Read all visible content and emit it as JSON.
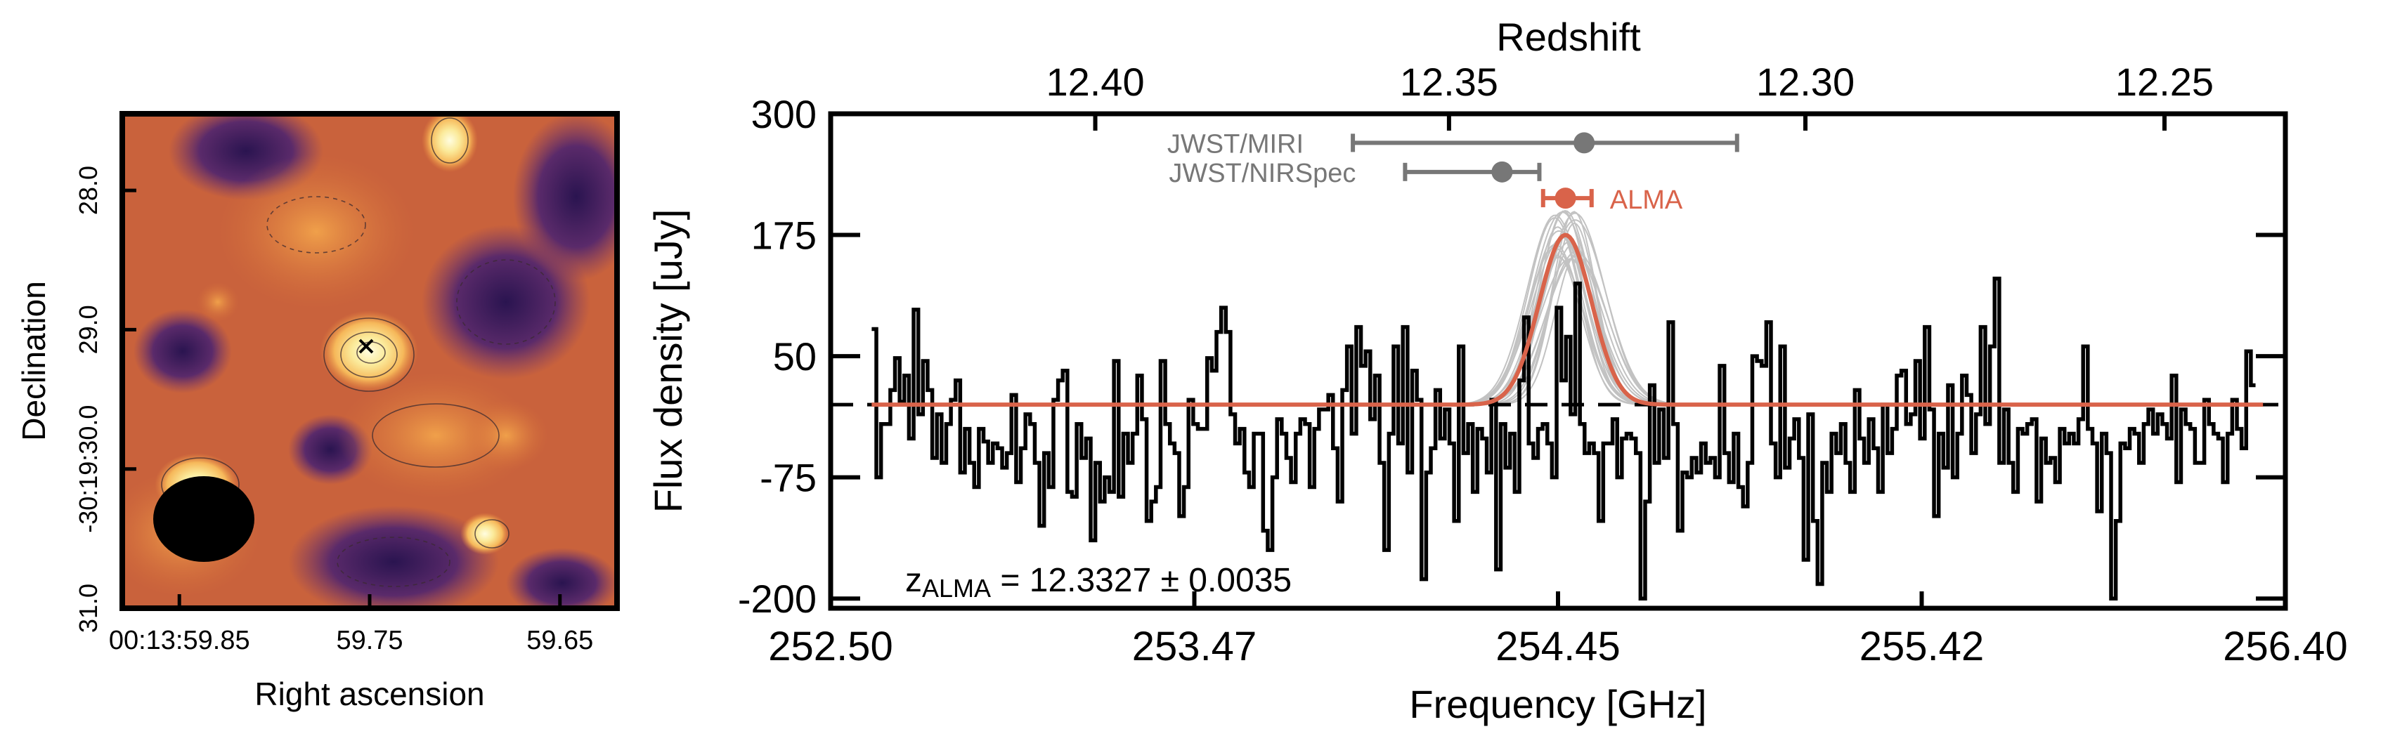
{
  "colors": {
    "alma": "#d9634a",
    "gray": "#777777",
    "fit_samples": "#c2c2c2",
    "spectrum": "#000000"
  },
  "map_panel": {
    "xlabel": "Right ascension",
    "ylabel": "Declination",
    "x_ticks": [
      {
        "value": 59.85,
        "label": "00:13:59.85"
      },
      {
        "value": 59.75,
        "label": "59.75"
      },
      {
        "value": 59.65,
        "label": "59.65"
      }
    ],
    "y_ticks": [
      {
        "value": 28.0,
        "label": "28.0"
      },
      {
        "value": 29.0,
        "label": "29.0"
      },
      {
        "value": 30.0,
        "label": "-30:19:30.0"
      },
      {
        "value": 31.0,
        "label": "31.0"
      }
    ],
    "marker": "x-cross-icon",
    "beam": "filled-ellipse"
  },
  "chart_data": {
    "type": "line",
    "xlabel": "Frequency [GHz]",
    "ylabel": "Flux density [uJy]",
    "top_axis_label": "Redshift",
    "xlim": [
      252.5,
      256.4
    ],
    "ylim": [
      -210,
      300
    ],
    "x_ticks": [
      {
        "value": 252.5,
        "label": "252.50"
      },
      {
        "value": 253.475,
        "label": "253.47"
      },
      {
        "value": 254.45,
        "label": "254.45"
      },
      {
        "value": 255.425,
        "label": "255.42"
      },
      {
        "value": 256.4,
        "label": "256.40"
      }
    ],
    "y_ticks": [
      {
        "value": 300,
        "label": "300"
      },
      {
        "value": 175,
        "label": "175"
      },
      {
        "value": 50,
        "label": "50"
      },
      {
        "value": -75,
        "label": "-75"
      },
      {
        "value": -200,
        "label": "-200"
      }
    ],
    "top_ticks": [
      {
        "value": 12.4,
        "label": "12.40"
      },
      {
        "value": 12.35,
        "label": "12.35"
      },
      {
        "value": 12.3,
        "label": "12.30"
      },
      {
        "value": 12.25,
        "label": "12.25"
      }
    ],
    "grid": false,
    "baseline": 0,
    "spectrum_step": {
      "x_start": 252.61,
      "x_end": 256.32,
      "values": [
        78,
        -75,
        -20,
        -20,
        15,
        48,
        3,
        30,
        -35,
        98,
        -10,
        45,
        15,
        -55,
        -10,
        -60,
        -20,
        5,
        25,
        -70,
        -25,
        -60,
        -85,
        -25,
        -38,
        -60,
        -40,
        -45,
        -65,
        -50,
        10,
        -80,
        -45,
        -10,
        -20,
        -60,
        -125,
        -50,
        -85,
        5,
        25,
        35,
        -90,
        -95,
        -20,
        -55,
        -35,
        -140,
        -60,
        -100,
        -75,
        -90,
        45,
        -95,
        -30,
        -60,
        -30,
        30,
        -15,
        -120,
        -100,
        -85,
        45,
        -20,
        -40,
        -50,
        -115,
        -85,
        5,
        -20,
        -25,
        -25,
        48,
        35,
        75,
        100,
        75,
        -10,
        -40,
        -25,
        -70,
        -85,
        -30,
        -30,
        -130,
        -150,
        -75,
        -15,
        -30,
        -55,
        -80,
        -30,
        -15,
        -20,
        -85,
        -25,
        -5,
        -5,
        10,
        -45,
        -100,
        15,
        60,
        -30,
        80,
        40,
        55,
        -15,
        30,
        -60,
        -150,
        -30,
        60,
        -40,
        80,
        -70,
        35,
        5,
        -180,
        -70,
        -45,
        15,
        -35,
        -5,
        -40,
        -120,
        60,
        -50,
        -20,
        -90,
        -25,
        -35,
        -70,
        5,
        -170,
        -20,
        -65,
        -30,
        -90,
        25,
        90,
        -40,
        -55,
        -25,
        -20,
        -40,
        -75,
        100,
        25,
        70,
        -10,
        125,
        -20,
        -50,
        -40,
        -50,
        -120,
        -40,
        -40,
        -15,
        -75,
        -35,
        -30,
        -35,
        -50,
        -200,
        -100,
        20,
        -60,
        -5,
        -55,
        85,
        -20,
        -130,
        -70,
        -75,
        -55,
        -70,
        -40,
        -60,
        -55,
        -75,
        40,
        -50,
        -80,
        -30,
        -85,
        -105,
        -60,
        50,
        45,
        40,
        85,
        -40,
        -75,
        60,
        -65,
        -35,
        -15,
        -55,
        -160,
        -10,
        -120,
        -185,
        -60,
        -90,
        -30,
        -50,
        -20,
        -60,
        -90,
        15,
        -35,
        -60,
        -15,
        -45,
        -90,
        0,
        -50,
        -25,
        30,
        35,
        -20,
        -10,
        45,
        -35,
        80,
        -5,
        -115,
        -30,
        -65,
        20,
        -75,
        -30,
        30,
        10,
        -50,
        -10,
        80,
        -20,
        60,
        130,
        -60,
        -5,
        -60,
        -90,
        -25,
        -30,
        -20,
        -15,
        -100,
        -35,
        -60,
        -55,
        -80,
        -25,
        -40,
        -30,
        -40,
        -15,
        60,
        -25,
        -40,
        -110,
        -30,
        -50,
        -200,
        -120,
        -40,
        -45,
        -25,
        -30,
        -60,
        -20,
        -5,
        -30,
        -10,
        -20,
        -35,
        30,
        -80,
        -5,
        -20,
        -25,
        -60,
        -60,
        5,
        -20,
        -30,
        -35,
        -80,
        -30,
        5,
        -25,
        -45,
        55,
        20
      ]
    },
    "gaussian_fit": {
      "center": 254.47,
      "amplitude": 175,
      "sigma": 0.07,
      "color": "#d9634a"
    },
    "redshift_points": [
      {
        "label": "JWST/MIRI",
        "freq": 254.52,
        "freq_low": 253.9,
        "freq_high": 254.93,
        "flux": 270,
        "color": "#777777"
      },
      {
        "label": "JWST/NIRSpec",
        "freq": 254.3,
        "freq_low": 254.04,
        "freq_high": 254.4,
        "flux": 240,
        "color": "#777777"
      },
      {
        "label": "ALMA",
        "freq": 254.47,
        "freq_low": 254.41,
        "freq_high": 254.54,
        "flux": 213,
        "color": "#d9634a"
      }
    ],
    "annotation": {
      "prefix": "z",
      "subscript": "ALMA",
      "text": " = 12.3327 ± 0.0035"
    }
  }
}
